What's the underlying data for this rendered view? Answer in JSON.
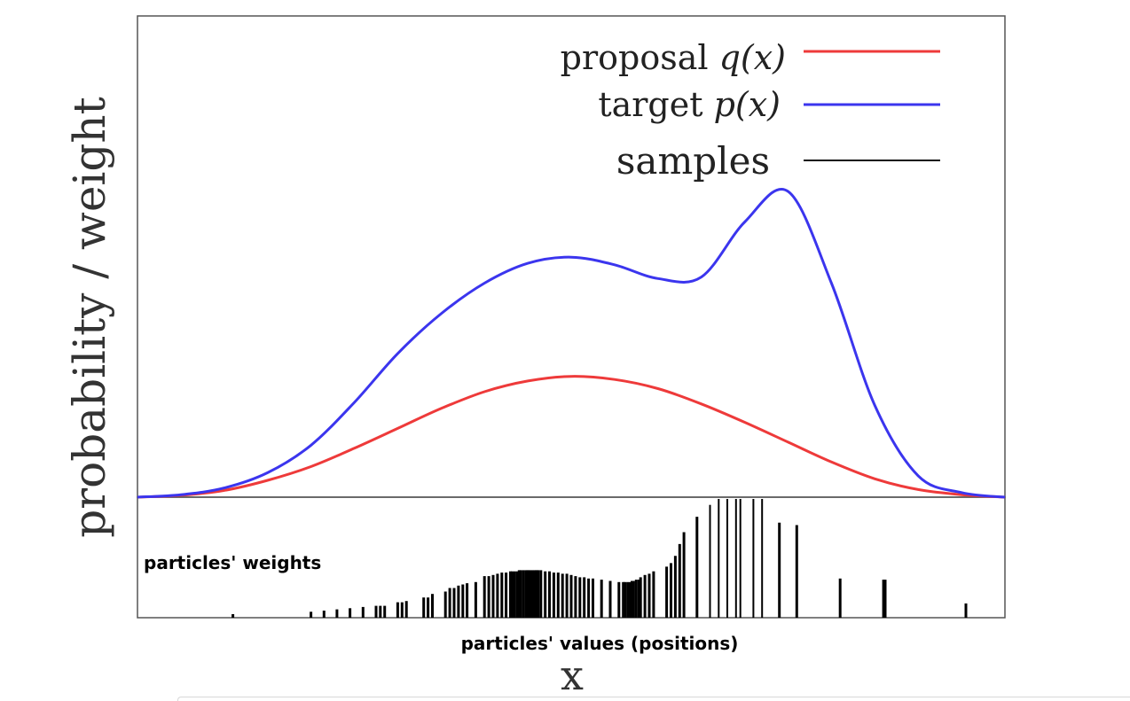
{
  "chart_data": {
    "type": "line",
    "ylabel": "probability / weight",
    "xlabel": "x",
    "xlim": [
      0,
      10
    ],
    "ylim": [
      0,
      1
    ],
    "grid": false,
    "legend_position": "top-right",
    "colors": {
      "proposal": "#ee3a3a",
      "target": "#3b35ee",
      "samples": "#000000"
    },
    "series": [
      {
        "name": "proposal q(x)",
        "legend_label": {
          "text": "proposal ",
          "math": "q(x)"
        },
        "color": "#ee3a3a",
        "x": [
          0,
          0.5,
          1,
          1.5,
          2,
          2.5,
          3,
          3.5,
          4,
          4.5,
          5,
          5.5,
          6,
          6.5,
          7,
          7.5,
          8,
          8.5,
          9,
          9.5,
          10
        ],
        "y": [
          0.0,
          0.006,
          0.022,
          0.055,
          0.1,
          0.16,
          0.225,
          0.29,
          0.345,
          0.38,
          0.395,
          0.385,
          0.355,
          0.305,
          0.245,
          0.18,
          0.115,
          0.06,
          0.025,
          0.008,
          0.0
        ]
      },
      {
        "name": "target p(x)",
        "legend_label": {
          "text": "target ",
          "math": "p(x)"
        },
        "color": "#3b35ee",
        "x": [
          0,
          0.5,
          1,
          1.5,
          2,
          2.5,
          3,
          3.5,
          4,
          4.5,
          5,
          5.5,
          6,
          6.5,
          7,
          7.5,
          8,
          8.5,
          9,
          9.5,
          10
        ],
        "y": [
          0.0,
          0.008,
          0.03,
          0.08,
          0.17,
          0.31,
          0.47,
          0.6,
          0.7,
          0.765,
          0.785,
          0.76,
          0.715,
          0.72,
          0.9,
          1.0,
          0.7,
          0.3,
          0.07,
          0.015,
          0.0
        ]
      },
      {
        "name": "samples",
        "legend_label": {
          "text": "samples",
          "math": ""
        },
        "color": "#000000"
      }
    ],
    "samples": {
      "weights_panel_ylim": [
        0,
        1
      ],
      "positions": [
        1.1,
        2.0,
        2.15,
        2.3,
        2.45,
        2.6,
        2.75,
        2.8,
        2.85,
        3.0,
        3.05,
        3.1,
        3.3,
        3.35,
        3.4,
        3.55,
        3.6,
        3.65,
        3.7,
        3.75,
        3.8,
        3.9,
        4.0,
        4.05,
        4.1,
        4.15,
        4.2,
        4.25,
        4.3,
        4.32,
        4.35,
        4.38,
        4.4,
        4.42,
        4.45,
        4.48,
        4.5,
        4.52,
        4.55,
        4.58,
        4.6,
        4.62,
        4.65,
        4.7,
        4.75,
        4.8,
        4.85,
        4.9,
        4.95,
        5.0,
        5.05,
        5.1,
        5.15,
        5.2,
        5.25,
        5.35,
        5.45,
        5.55,
        5.6,
        5.62,
        5.65,
        5.68,
        5.7,
        5.72,
        5.75,
        5.78,
        5.8,
        5.85,
        5.9,
        5.95,
        6.1,
        6.15,
        6.2,
        6.25,
        6.3,
        6.45,
        6.6,
        6.7,
        6.8,
        6.9,
        6.95,
        7.1,
        7.2,
        7.4,
        7.6,
        8.1,
        8.6,
        8.62,
        9.55
      ],
      "weights": [
        0.03,
        0.05,
        0.06,
        0.07,
        0.08,
        0.09,
        0.1,
        0.1,
        0.1,
        0.13,
        0.13,
        0.14,
        0.17,
        0.17,
        0.2,
        0.22,
        0.25,
        0.25,
        0.27,
        0.28,
        0.29,
        0.3,
        0.35,
        0.35,
        0.36,
        0.37,
        0.38,
        0.38,
        0.39,
        0.39,
        0.39,
        0.39,
        0.4,
        0.4,
        0.4,
        0.4,
        0.4,
        0.4,
        0.4,
        0.4,
        0.4,
        0.4,
        0.4,
        0.39,
        0.39,
        0.38,
        0.38,
        0.37,
        0.37,
        0.36,
        0.35,
        0.34,
        0.34,
        0.33,
        0.33,
        0.32,
        0.31,
        0.3,
        0.3,
        0.3,
        0.3,
        0.3,
        0.31,
        0.31,
        0.32,
        0.32,
        0.34,
        0.36,
        0.37,
        0.39,
        0.43,
        0.46,
        0.52,
        0.62,
        0.72,
        0.85,
        0.95,
        1.0,
        1.0,
        1.0,
        1.0,
        1.0,
        1.0,
        0.8,
        0.78,
        0.33,
        0.32,
        0.32,
        0.12
      ]
    },
    "annotations": {
      "weights_panel_label": "particles' weights",
      "positions_label": "particles' values (positions)"
    }
  }
}
